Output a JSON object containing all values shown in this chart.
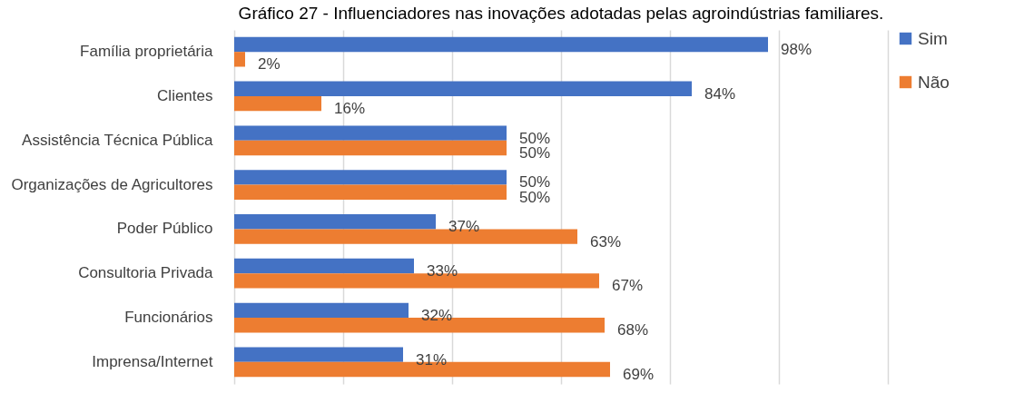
{
  "chart_data": {
    "type": "bar",
    "orientation": "horizontal",
    "title": "Gráfico 27 - Influenciadores nas inovações adotadas pelas agroindústrias familiares.",
    "categories": [
      "Família proprietária",
      "Clientes",
      "Assistência Técnica Pública",
      "Organizações de Agricultores",
      "Poder Público",
      "Consultoria Privada",
      "Funcionários",
      "Imprensa/Internet"
    ],
    "series": [
      {
        "name": "Sim",
        "color": "#4472c4",
        "values": [
          98,
          84,
          50,
          50,
          37,
          33,
          32,
          31
        ],
        "value_labels": [
          "98%",
          "84%",
          "50%",
          "50%",
          "37%",
          "33%",
          "32%",
          "31%"
        ]
      },
      {
        "name": "Não",
        "color": "#ed7d31",
        "values": [
          2,
          16,
          50,
          50,
          63,
          67,
          68,
          69
        ],
        "value_labels": [
          "2%",
          "16%",
          "50%",
          "50%",
          "63%",
          "67%",
          "68%",
          "69%"
        ]
      }
    ],
    "xlim": [
      0,
      120
    ],
    "xticks": [
      {
        "value": 0,
        "label": null
      },
      {
        "value": 20,
        "label": null
      },
      {
        "value": 40,
        "label": null
      },
      {
        "value": 60,
        "label": null
      },
      {
        "value": 80,
        "label": null
      },
      {
        "value": 100,
        "label": null
      },
      {
        "value": 120,
        "label": null
      }
    ],
    "grid": "x",
    "legend": "right",
    "tick_labels": "y"
  }
}
